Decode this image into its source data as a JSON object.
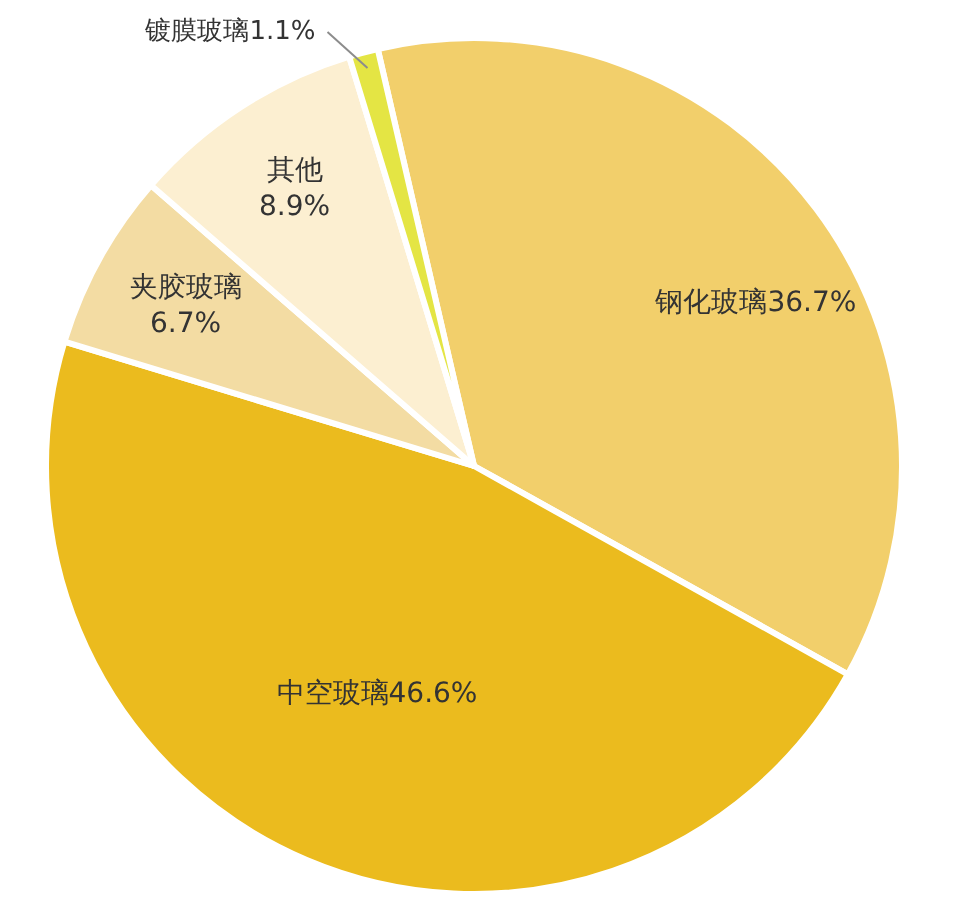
{
  "chart_data": {
    "type": "pie",
    "categories": [
      "钢化玻璃",
      "中空玻璃",
      "夹胶玻璃",
      "其他",
      "镀膜玻璃"
    ],
    "values": [
      36.7,
      46.6,
      6.7,
      8.9,
      1.1
    ],
    "value_labels": [
      "36.7%",
      "46.6%",
      "6.7%",
      "8.9%",
      "1.1%"
    ],
    "colors": [
      "#f2cf6b",
      "#ebbb1e",
      "#f3dca3",
      "#fcefd1",
      "#e4e544"
    ]
  }
}
